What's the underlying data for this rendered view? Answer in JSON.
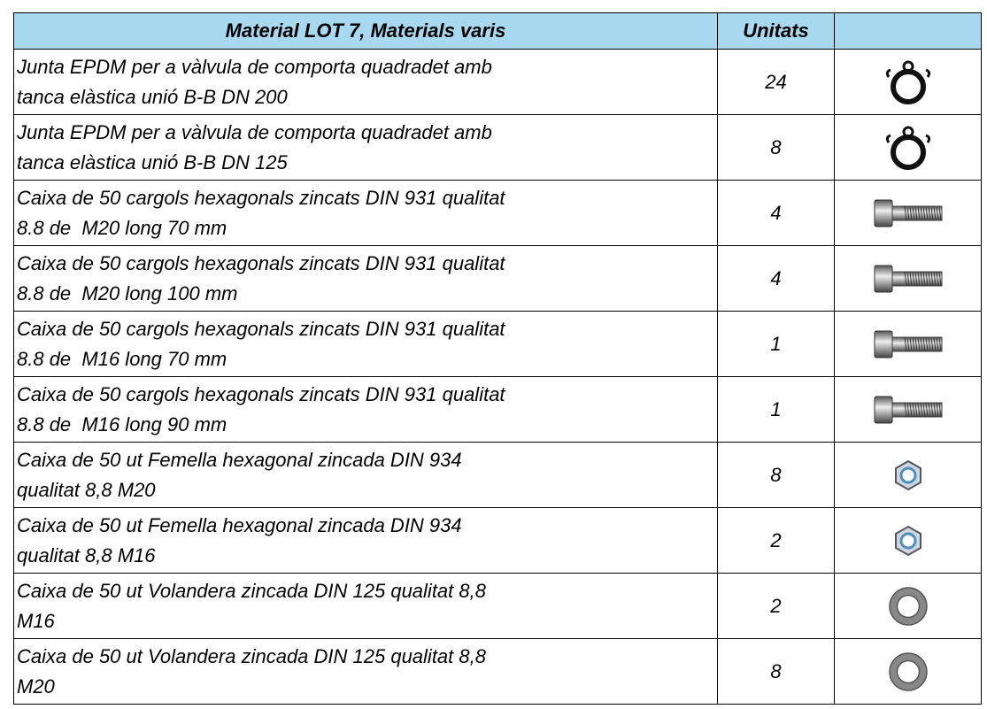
{
  "table": {
    "header": [
      "Material LOT 7, Materials varis",
      "Unitats"
    ],
    "rows": [
      {
        "description": [
          "Junta EPDM per a vàlvula de comporta quadradet amb",
          "tanca elàstica unió B-B DN 200"
        ],
        "units": 24
      },
      {
        "description": [
          "Junta EPDM per a vàlvula de comporta quadradet amb",
          "tanca elàstica unió B-B DN 125"
        ],
        "units": 8
      },
      {
        "description": [
          "Caixa de 50 cargols hexagonals zincats DIN 931 qualitat",
          "8.8 de  M20 long 70 mm"
        ],
        "units": 4
      },
      {
        "description": [
          "Caixa de 50 cargols hexagonals zincats DIN 931 qualitat",
          "8.8 de  M20 long 100 mm"
        ],
        "units": 4
      },
      {
        "description": [
          "Caixa de 50 cargols hexagonals zincats DIN 931 qualitat",
          "8.8 de  M16 long 70 mm"
        ],
        "units": 1
      },
      {
        "description": [
          "Caixa de 50 cargols hexagonals zincats DIN 931 qualitat",
          "8.8 de  M16 long 90 mm"
        ],
        "units": 1
      },
      {
        "description": [
          "Caixa de 50 ut Femella hexagonal zincada DIN 934",
          "qualitat 8,8 M20"
        ],
        "units": 8
      },
      {
        "description": [
          "Caixa de 50 ut Femella hexagonal zincada DIN 934",
          "qualitat 8,8 M16"
        ],
        "units": 2
      },
      {
        "description": [
          "Caixa de 50 ut Volandera zincada DIN 125 qualitat 8,8",
          "M16"
        ],
        "units": 2
      },
      {
        "description": [
          "Caixa de 50 ut Volandera zincada DIN 125 qualitat 8,8",
          "M20"
        ],
        "units": 8
      }
    ]
  }
}
